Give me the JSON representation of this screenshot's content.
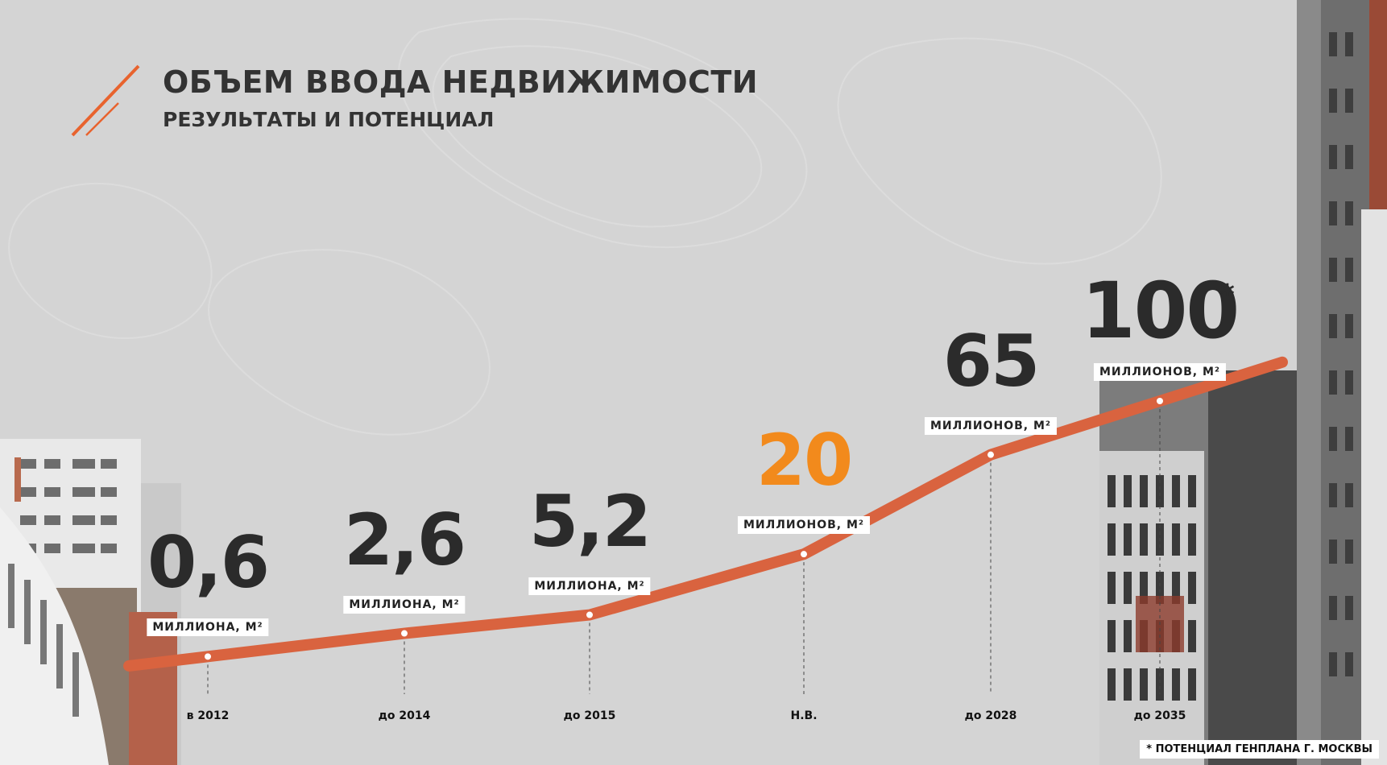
{
  "header": {
    "title": "ОБЪЕМ ВВОДА НЕДВИЖИМОСТИ",
    "subtitle": "РЕЗУЛЬТАТЫ И ПОТЕНЦИАЛ"
  },
  "colors": {
    "background": "#d4d4d4",
    "line": "#d9633f",
    "accent": "#f28a1c",
    "text": "#2b2b2b"
  },
  "icons": [
    "slash-logo-icon"
  ],
  "chart_data": {
    "type": "line",
    "title": "ОБЪЕМ ВВОДА НЕДВИЖИМОСТИ",
    "subtitle": "РЕЗУЛЬТАТЫ И ПОТЕНЦИАЛ",
    "categories": [
      "в 2012",
      "до 2014",
      "до 2015",
      "Н.В.",
      "до 2028",
      "до 2035"
    ],
    "values": [
      0.6,
      2.6,
      5.2,
      20,
      65,
      100
    ],
    "value_labels": [
      "0,6",
      "2,6",
      "5,2",
      "20",
      "65",
      "100"
    ],
    "units": [
      "МИЛЛИОНА, М²",
      "МИЛЛИОНА, М²",
      "МИЛЛИОНА, М²",
      "МИЛЛИОНОВ, М²",
      "МИЛЛИОНОВ, М²",
      "МИЛЛИОНОВ, М²"
    ],
    "highlight_index": 3,
    "asterisk_index": 5,
    "asterisk": "*",
    "footnote": "* ПОТЕНЦИАЛ ГЕНПЛАНА Г. МОСКВЫ",
    "xlabel": "",
    "ylabel": "",
    "grid": false,
    "legend": "none"
  }
}
